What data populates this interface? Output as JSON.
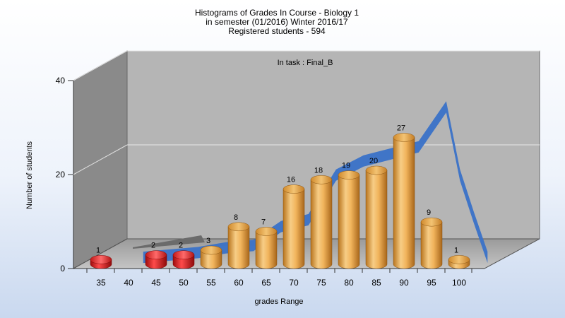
{
  "chart_data": {
    "type": "bar",
    "title_lines": [
      "Histograms of Grades  In Course - Biology 1",
      "in semester  (01/2016) Winter 2016/17",
      "Registered students - 594"
    ],
    "annotation": "In task : Final_B",
    "xlabel": "grades Range",
    "ylabel": "Number of students",
    "ylim": [
      0,
      40
    ],
    "yticks": [
      0,
      20,
      40
    ],
    "x_tick_labels": [
      "35",
      "40",
      "45",
      "50",
      "55",
      "60",
      "65",
      "70",
      "75",
      "80",
      "85",
      "90",
      "95",
      "100"
    ],
    "bars": [
      {
        "x": 35,
        "value": 1,
        "color": "#e02020"
      },
      {
        "x": 45,
        "value": 2,
        "color": "#e02020"
      },
      {
        "x": 50,
        "value": 2,
        "color": "#e02020"
      },
      {
        "x": 55,
        "value": 3,
        "color": "#e8a84a"
      },
      {
        "x": 60,
        "value": 8,
        "color": "#e8a84a"
      },
      {
        "x": 65,
        "value": 7,
        "color": "#e8a84a"
      },
      {
        "x": 70,
        "value": 16,
        "color": "#e8a84a"
      },
      {
        "x": 75,
        "value": 18,
        "color": "#e8a84a"
      },
      {
        "x": 80,
        "value": 19,
        "color": "#e8a84a"
      },
      {
        "x": 85,
        "value": 20,
        "color": "#e8a84a"
      },
      {
        "x": 90,
        "value": 27,
        "color": "#e8a84a"
      },
      {
        "x": 95,
        "value": 9,
        "color": "#e8a84a"
      },
      {
        "x": 100,
        "value": 1,
        "color": "#e8a84a"
      }
    ],
    "trend_series": {
      "x": [
        40,
        45,
        50,
        55,
        60,
        65,
        70,
        75,
        80,
        85,
        90,
        95,
        97.5,
        100,
        102.5
      ],
      "values": [
        0.5,
        1,
        1.5,
        2.5,
        3,
        7,
        8.5,
        18,
        21,
        22.5,
        24,
        32.5,
        18,
        9,
        0.5
      ],
      "color": "#3a72c8"
    },
    "grid": true,
    "colors": {
      "fail_bar": "#e02020",
      "pass_bar": "#e8a84a",
      "trend_band": "#3a72c8",
      "back_wall": "#b5b5b5",
      "side_wall": "#8a8a8a",
      "floor": "#a8a8a8"
    }
  }
}
